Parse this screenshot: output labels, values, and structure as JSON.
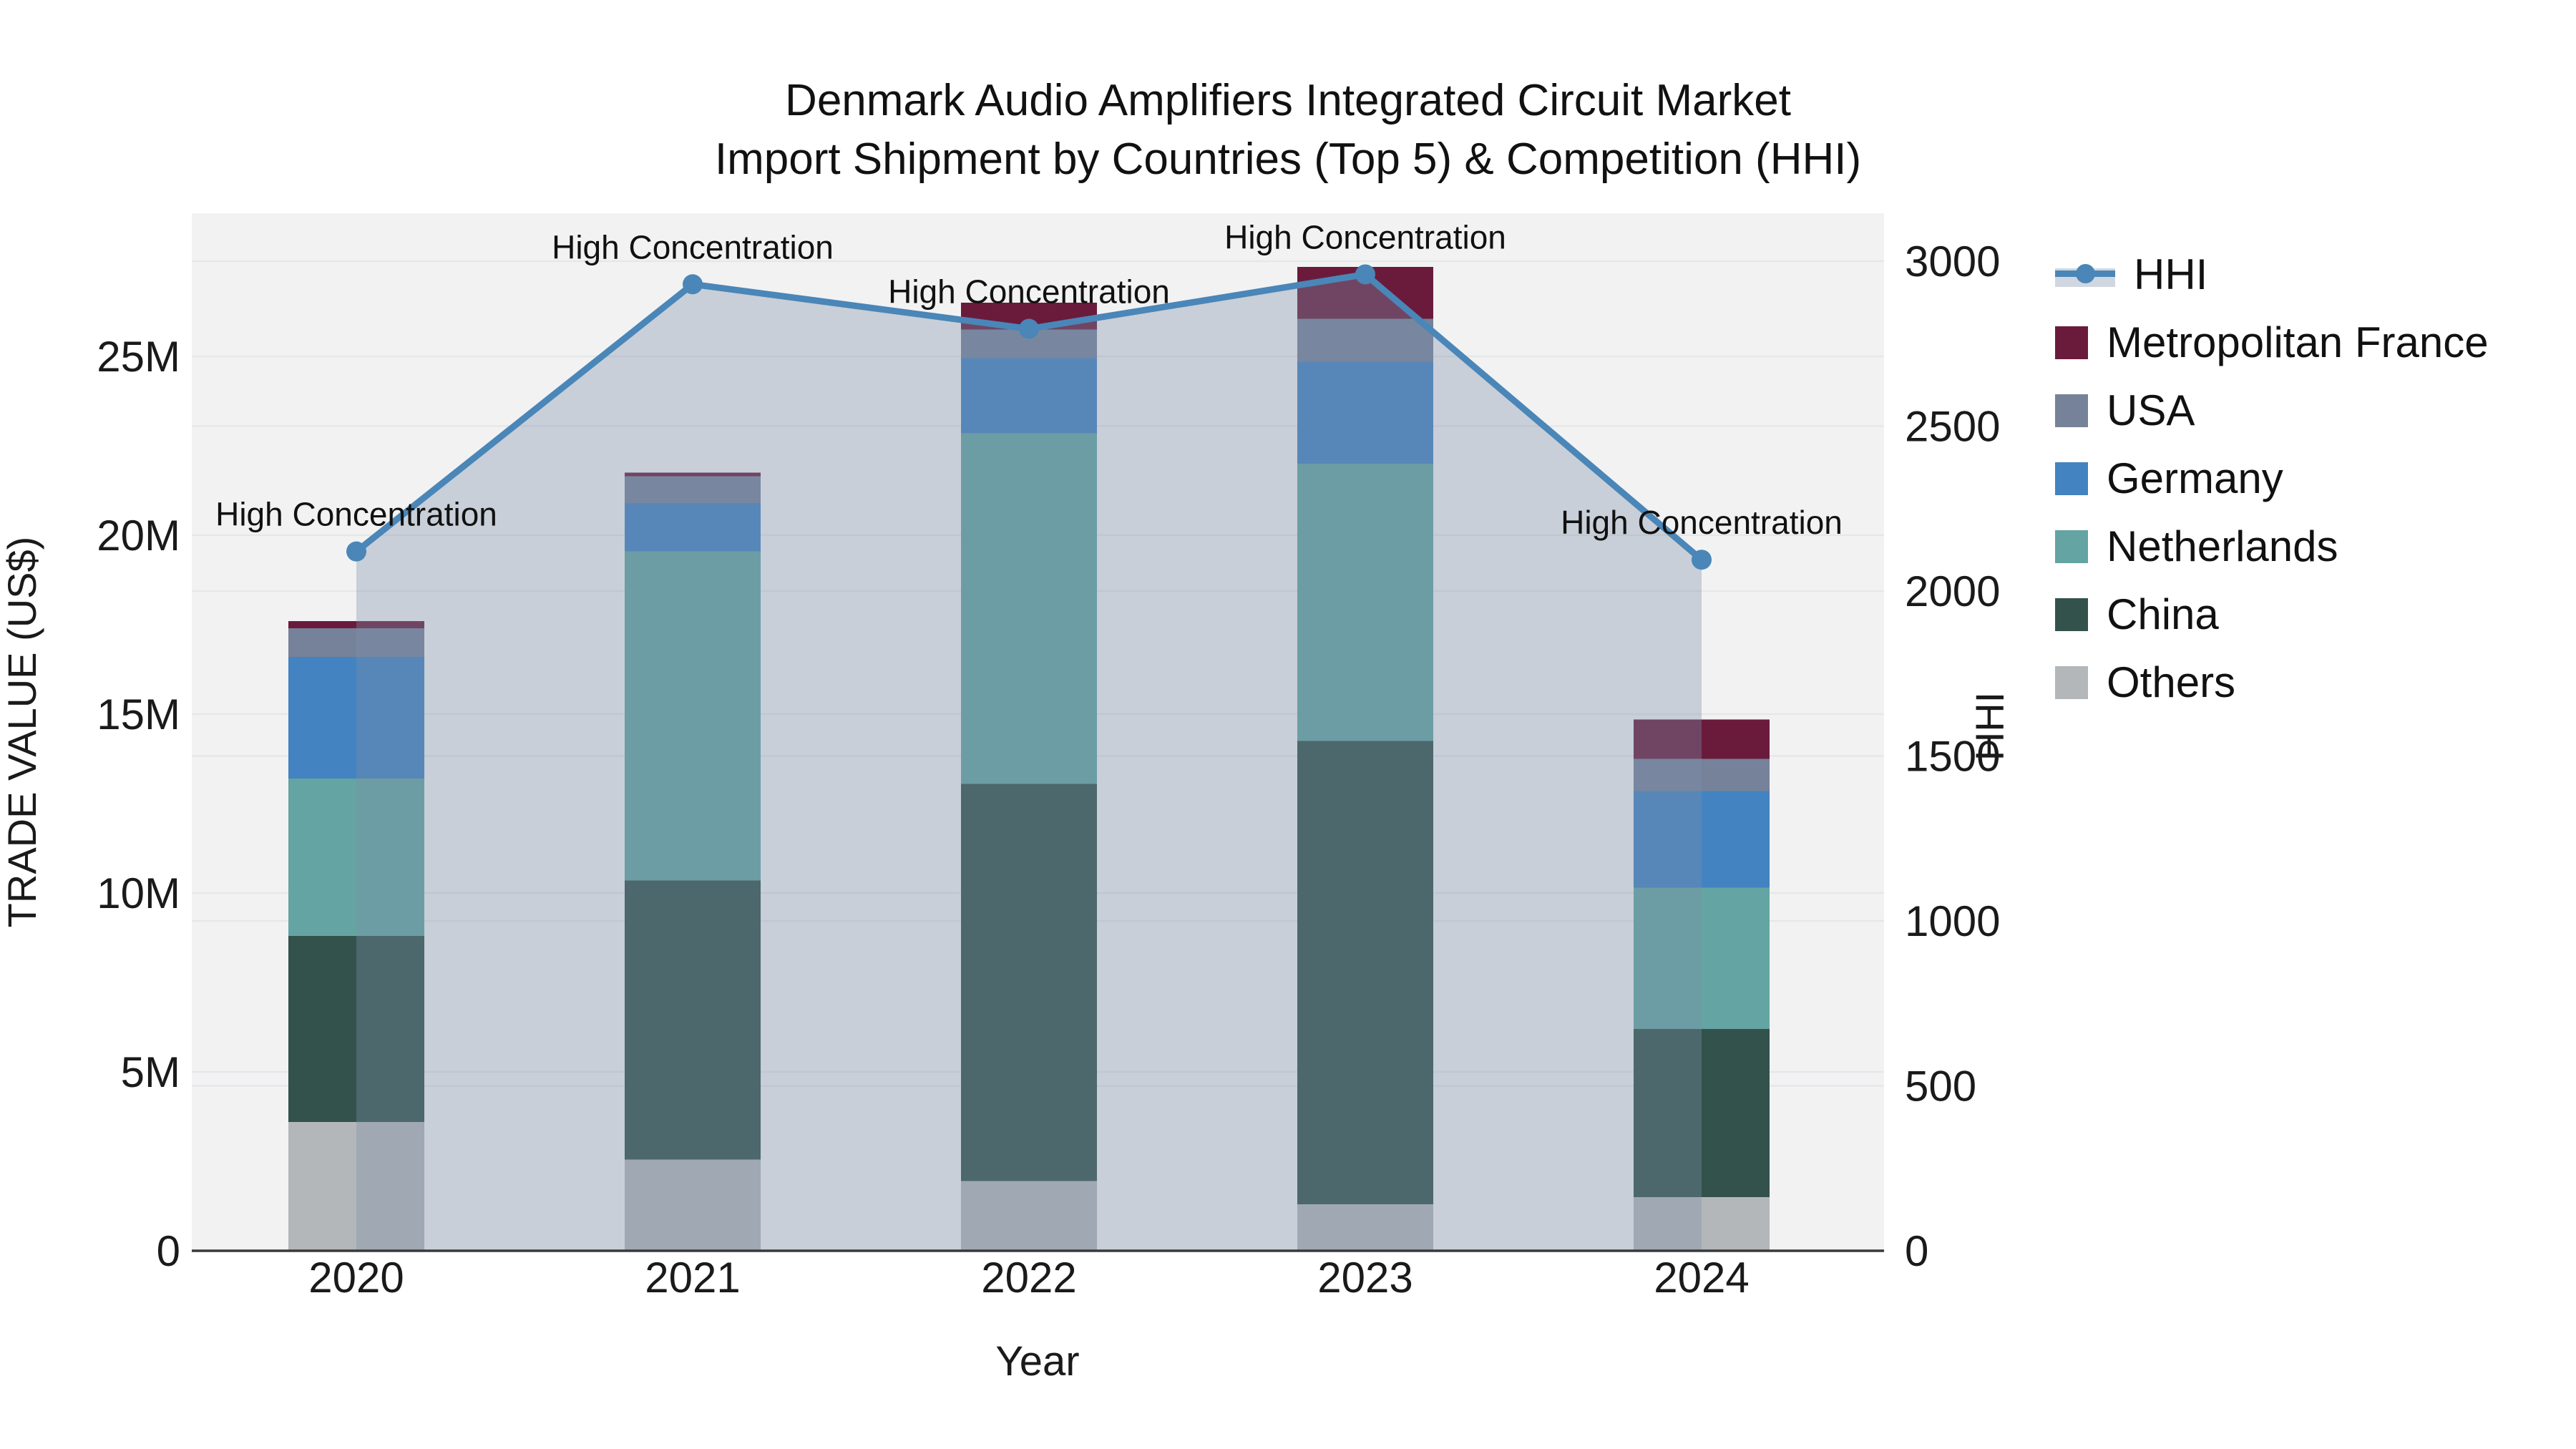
{
  "title": {
    "line1": "Denmark Audio Amplifiers Integrated Circuit Market",
    "line2": "Import Shipment by Countries (Top 5) & Competition (HHI)"
  },
  "chart_data": {
    "type": "stacked-bar-with-line",
    "categories": [
      "2020",
      "2021",
      "2022",
      "2023",
      "2024"
    ],
    "value_unit": "millions USD",
    "series": [
      {
        "name": "Metropolitan France",
        "values": [
          0.2,
          0.1,
          0.75,
          1.45,
          1.1
        ]
      },
      {
        "name": "USA",
        "values": [
          0.8,
          0.75,
          0.8,
          1.2,
          0.9
        ]
      },
      {
        "name": "Germany",
        "values": [
          3.4,
          1.35,
          2.1,
          2.85,
          2.7
        ]
      },
      {
        "name": "Netherlands",
        "values": [
          4.4,
          9.2,
          9.8,
          7.75,
          3.95
        ]
      },
      {
        "name": "China",
        "values": [
          5.2,
          7.8,
          11.1,
          12.95,
          4.7
        ]
      },
      {
        "name": "Others",
        "values": [
          3.6,
          2.55,
          1.95,
          1.3,
          1.5
        ]
      }
    ],
    "stack_order_bottom_to_top": [
      "Others",
      "China",
      "Netherlands",
      "Germany",
      "USA",
      "Metropolitan France"
    ],
    "bar_totals": [
      17.6,
      21.75,
      26.5,
      27.5,
      14.85
    ],
    "line_series": {
      "name": "HHI",
      "values": [
        2120,
        2930,
        2795,
        2960,
        2095
      ],
      "has_area_fill": true
    },
    "point_labels": [
      "High Concentration",
      "High Concentration",
      "High Concentration",
      "High Concentration",
      "High Concentration"
    ],
    "xlabel": "Year",
    "ylabel_left": "TRADE VALUE (US$)",
    "ylabel_right": "HHI",
    "y_left_ticks": [
      {
        "v": 0,
        "label": "0"
      },
      {
        "v": 5,
        "label": "5M"
      },
      {
        "v": 10,
        "label": "10M"
      },
      {
        "v": 15,
        "label": "15M"
      },
      {
        "v": 20,
        "label": "20M"
      },
      {
        "v": 25,
        "label": "25M"
      }
    ],
    "y_right_ticks": [
      {
        "v": 0,
        "label": "0"
      },
      {
        "v": 500,
        "label": "500"
      },
      {
        "v": 1000,
        "label": "1000"
      },
      {
        "v": 1500,
        "label": "1500"
      },
      {
        "v": 2000,
        "label": "2000"
      },
      {
        "v": 2500,
        "label": "2500"
      },
      {
        "v": 3000,
        "label": "3000"
      }
    ],
    "ylim_left": [
      0,
      29
    ],
    "ylim_right": [
      0,
      3145
    ],
    "grid": true,
    "legend_position": "right"
  },
  "legend": {
    "items": [
      {
        "name": "HHI",
        "color": "#4a86b8",
        "kind": "line"
      },
      {
        "name": "Metropolitan France",
        "color": "#6a1b3c",
        "kind": "square"
      },
      {
        "name": "USA",
        "color": "#768299",
        "kind": "square"
      },
      {
        "name": "Germany",
        "color": "#4383c1",
        "kind": "square"
      },
      {
        "name": "Netherlands",
        "color": "#64a4a2",
        "kind": "square"
      },
      {
        "name": "China",
        "color": "#33524c",
        "kind": "square"
      },
      {
        "name": "Others",
        "color": "#b4b7b9",
        "kind": "square"
      }
    ]
  },
  "colors": {
    "hhi_line": "#4a86b8",
    "hhi_area_rgba": "rgba(124,144,168,0.36)",
    "plot_bg": "#f2f2f3",
    "gridline": "#e6e7e9",
    "axis_line": "#3a3a3a",
    "text": "#1a1a1a",
    "title_text": "#111111"
  }
}
